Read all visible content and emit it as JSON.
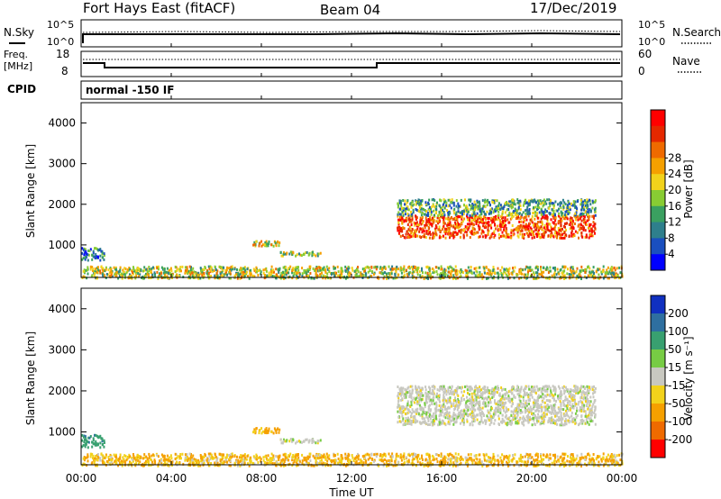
{
  "header": {
    "radar": "Fort Hays East (fitACF)",
    "beam": "Beam 04",
    "date": "17/Dec/2019"
  },
  "noise_panel": {
    "left_label": "N.Sky",
    "left_ticks": [
      "10^5",
      "10^0"
    ],
    "right_label": "N.Search",
    "right_ticks": [
      "10^5",
      "10^0"
    ]
  },
  "freq_panel": {
    "left_label_1": "Freq.",
    "left_label_2": "[MHz]",
    "left_ticks": [
      "18",
      "8"
    ],
    "right_label": "Nave",
    "right_ticks": [
      "60",
      "0"
    ]
  },
  "cpid_panel": {
    "label": "CPID",
    "mode_text": "normal -150 IF"
  },
  "x_axis": {
    "label": "Time UT",
    "ticks": [
      "00:00",
      "04:00",
      "08:00",
      "12:00",
      "16:00",
      "20:00",
      "00:00"
    ]
  },
  "chart_data": [
    {
      "type": "heatmap",
      "name": "power",
      "ylabel": "Slant Range [km]",
      "yticks": [
        "1000",
        "2000",
        "3000",
        "4000"
      ],
      "ylim": [
        200,
        4500
      ],
      "xlim_hours": [
        0,
        24
      ],
      "colorbar": {
        "label": "Power [dB]",
        "ticks": [
          "4",
          "8",
          "12",
          "16",
          "20",
          "24",
          "28"
        ],
        "colors": [
          "#0000ff",
          "#1a4fbf",
          "#2e7f8c",
          "#3aa060",
          "#88cc33",
          "#f2d21b",
          "#f5a000",
          "#ef6a00",
          "#e52800",
          "#ff0000"
        ]
      },
      "regions": [
        {
          "t0": 0.0,
          "t1": 1.0,
          "r0": 650,
          "r1": 950,
          "level": 0.25
        },
        {
          "t0": 7.6,
          "t1": 8.8,
          "r0": 1000,
          "r1": 1120,
          "level": 0.55
        },
        {
          "t0": 8.8,
          "t1": 10.6,
          "r0": 760,
          "r1": 860,
          "level": 0.45
        },
        {
          "t0": 14.0,
          "t1": 22.8,
          "r0": 1200,
          "r1": 1750,
          "level": 0.8
        },
        {
          "t0": 14.0,
          "t1": 22.8,
          "r0": 1750,
          "r1": 2150,
          "level": 0.35
        },
        {
          "t0": 0.0,
          "t1": 24.0,
          "r0": 200,
          "r1": 500,
          "level": 0.5
        }
      ]
    },
    {
      "type": "heatmap",
      "name": "velocity",
      "ylabel": "Slant Range [km]",
      "yticks": [
        "1000",
        "2000",
        "3000",
        "4000"
      ],
      "ylim": [
        200,
        4500
      ],
      "xlim_hours": [
        0,
        24
      ],
      "colorbar": {
        "label": "Velocity [m s⁻¹]",
        "ticks": [
          "200",
          "100",
          "50",
          "15",
          "-15",
          "-50",
          "-100",
          "-200"
        ],
        "colors": [
          "#1030c0",
          "#2e6fa0",
          "#38a070",
          "#77cc44",
          "#c8c8c0",
          "#f2d21b",
          "#f5a000",
          "#ef6a00",
          "#ff0000"
        ]
      },
      "regions": [
        {
          "t0": 0.0,
          "t1": 1.0,
          "r0": 650,
          "r1": 950,
          "vel": 60
        },
        {
          "t0": 7.6,
          "t1": 8.8,
          "r0": 1000,
          "r1": 1120,
          "vel": -40
        },
        {
          "t0": 8.8,
          "t1": 10.6,
          "r0": 760,
          "r1": 860,
          "vel": 0
        },
        {
          "t0": 14.0,
          "t1": 22.8,
          "r0": 1200,
          "r1": 2150,
          "vel": 0
        },
        {
          "t0": 0.0,
          "t1": 24.0,
          "r0": 200,
          "r1": 500,
          "vel": -30
        }
      ]
    }
  ]
}
